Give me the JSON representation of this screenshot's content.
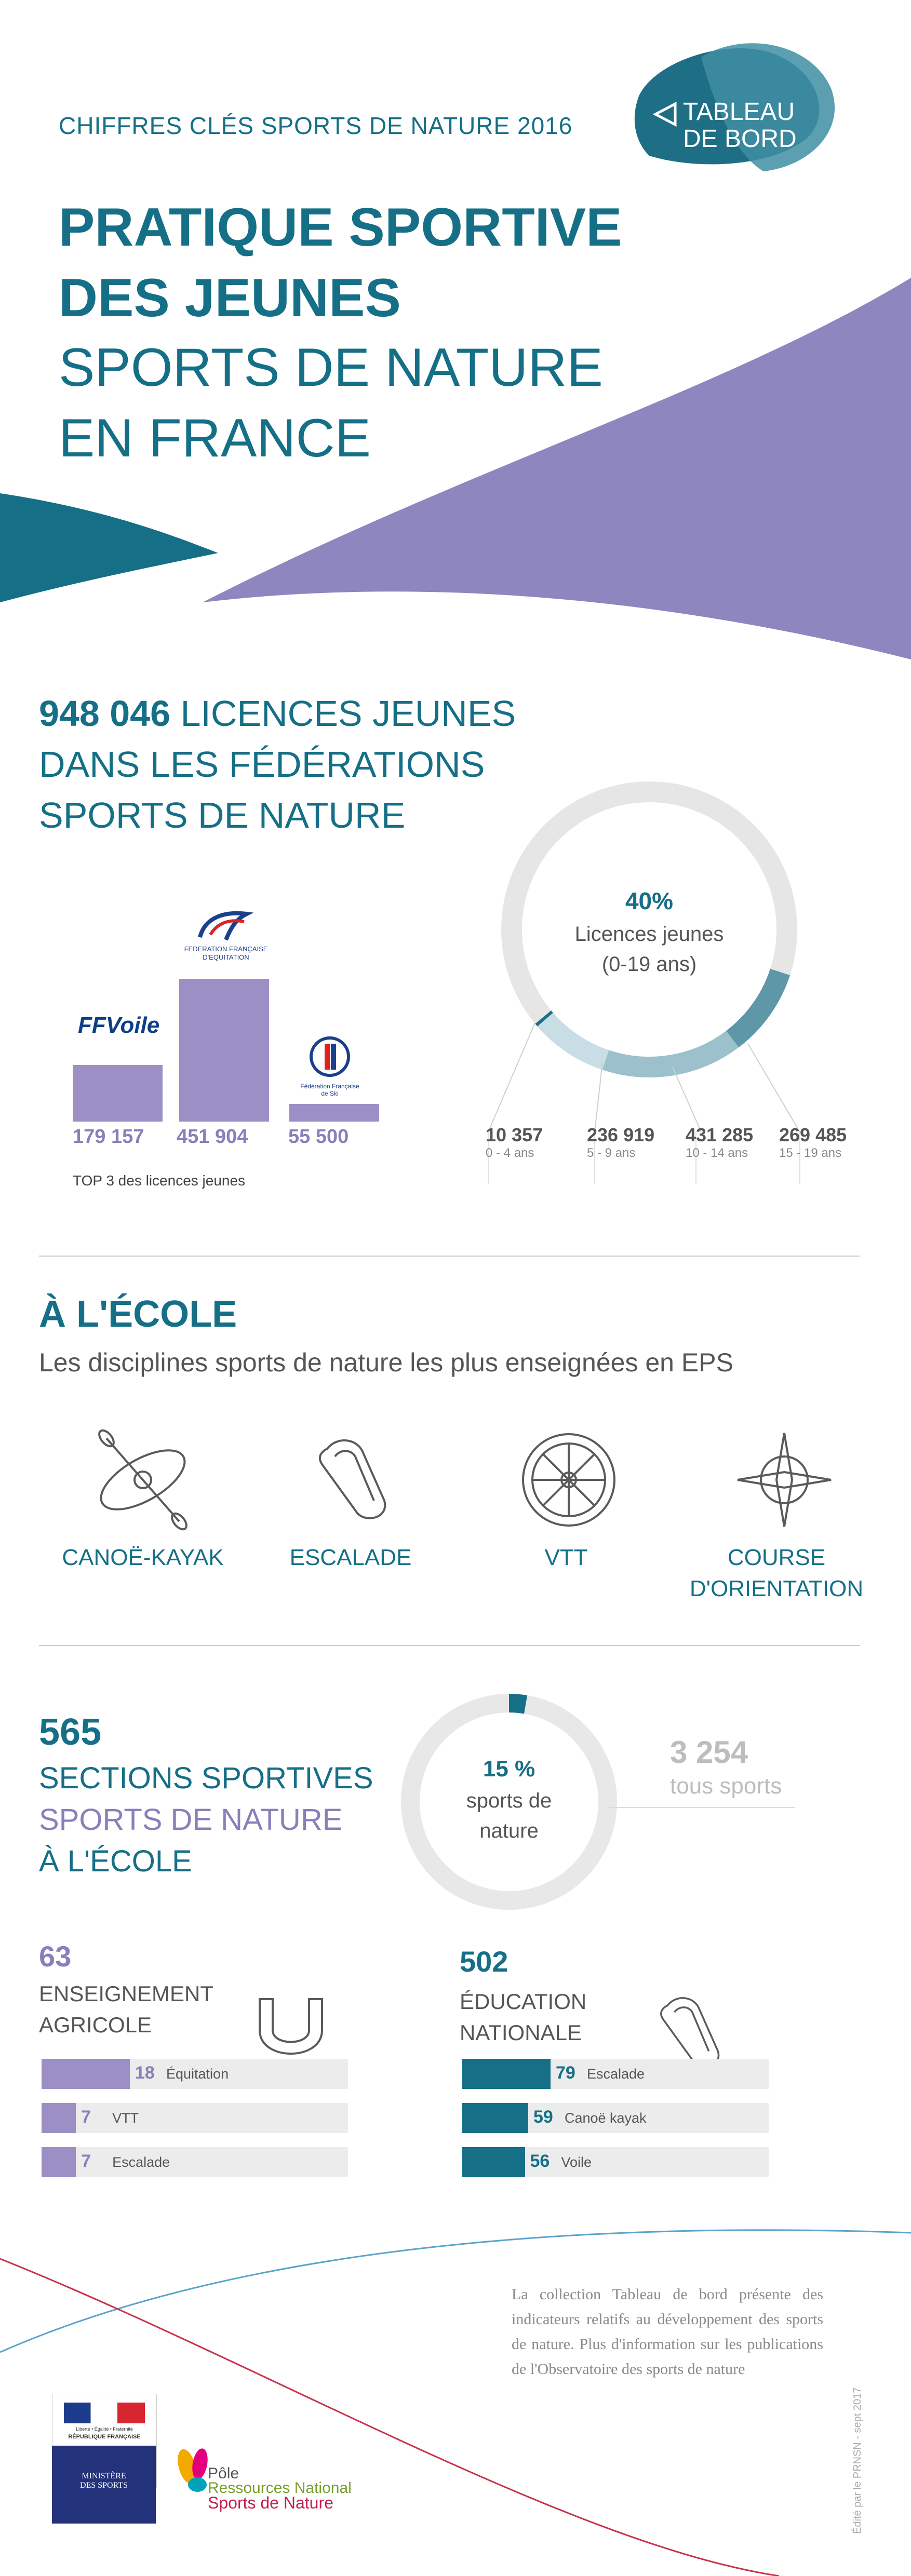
{
  "header": {
    "kicker": "CHIFFRES CLÉS SPORTS DE NATURE 2016",
    "title_line1": "PRATIQUE SPORTIVE",
    "title_line2": "DES JEUNES",
    "title_line3": "SPORTS DE NATURE",
    "title_line4": "EN FRANCE",
    "badge_line1": "TABLEAU",
    "badge_line2": "DE BORD",
    "colors": {
      "teal": "#156f86",
      "purple": "#8a7fba"
    }
  },
  "licences": {
    "total": "948 046",
    "title_line1_rest": " LICENCES JEUNES",
    "title_line2": "DANS LES FÉDÉRATIONS",
    "title_line3": "SPORTS DE NATURE",
    "top3_caption": "TOP 3 des licences jeunes",
    "federations": [
      {
        "logo": "ff-voile-logo",
        "logo_text": "FFVoile",
        "value": "179 157",
        "amount": 179157
      },
      {
        "logo": "ffe-equitation-logo",
        "logo_text": "FEDERATION FRANÇAISE D'EQUITATION",
        "value": "451 904",
        "amount": 451904
      },
      {
        "logo": "ffs-ski-logo",
        "logo_text": "Fédération Française de Ski",
        "value": "55 500",
        "amount": 55500
      }
    ],
    "donut": {
      "percent_label": "40%",
      "percent": 40,
      "sub_line1": "Licences jeunes",
      "sub_line2": "(0-19 ans)",
      "ages": [
        {
          "value": "10 357",
          "label": "0 - 4 ans",
          "amount": 10357
        },
        {
          "value": "236 919",
          "label": "5 - 9 ans",
          "amount": 236919
        },
        {
          "value": "431 285",
          "label": "10 - 14 ans",
          "amount": 431285
        },
        {
          "value": "269 485",
          "label": "15 - 19 ans",
          "amount": 269485
        }
      ]
    }
  },
  "ecole": {
    "title": "À L'ÉCOLE",
    "subtitle": "Les disciplines sports de nature les plus enseignées en EPS",
    "disciplines": [
      {
        "icon": "canoe-kayak-icon",
        "line1": "CANOË-KAYAK",
        "line2": ""
      },
      {
        "icon": "carabiner-icon",
        "line1": "ESCALADE",
        "line2": ""
      },
      {
        "icon": "bike-wheel-icon",
        "line1": "VTT",
        "line2": ""
      },
      {
        "icon": "compass-rose-icon",
        "line1": "COURSE",
        "line2": "D'ORIENTATION"
      }
    ]
  },
  "sections": {
    "count": "565",
    "line1": "SECTIONS SPORTIVES",
    "line2": "SPORTS DE NATURE",
    "line3": "À L'ÉCOLE",
    "donut_percent_label": "15 %",
    "donut_percent": 15,
    "donut_line1": "sports de",
    "donut_line2": "nature",
    "all_sports_value": "3 254",
    "all_sports_label": "tous sports"
  },
  "agricole": {
    "count": "63",
    "line1": "ENSEIGNEMENT",
    "line2": "AGRICOLE",
    "icon": "horseshoe-icon",
    "rows": [
      {
        "value": "18",
        "label": "Équitation",
        "amount": 18
      },
      {
        "value": "7",
        "label": "VTT",
        "amount": 7
      },
      {
        "value": "7",
        "label": "Escalade",
        "amount": 7
      }
    ]
  },
  "nationale": {
    "count": "502",
    "line1": "ÉDUCATION",
    "line2": "NATIONALE",
    "icon": "carabiner-icon",
    "rows": [
      {
        "value": "79",
        "label": "Escalade",
        "amount": 79
      },
      {
        "value": "59",
        "label": "Canoë kayak",
        "amount": 59
      },
      {
        "value": "56",
        "label": "Voile",
        "amount": 56
      }
    ]
  },
  "footer": {
    "note": "La collection Tableau de bord présente des indicateurs relatifs au développement des sports de nature. Plus d'information sur les publications de l'Observatoire des sports de nature",
    "credit": "Édité par le PRNSN - sept 2017",
    "republique_line1": "Liberté • Égalité • Fraternité",
    "republique_line2": "RÉPUBLIQUE FRANÇAISE",
    "ministere_line1": "MINISTÈRE",
    "ministere_line2": "DES SPORTS",
    "pole_line1": "Pôle",
    "pole_line2": "Ressources National",
    "pole_line3": "Sports de Nature"
  }
}
